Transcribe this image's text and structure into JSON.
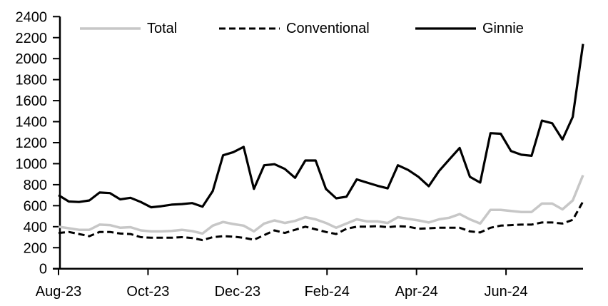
{
  "figure": {
    "background_color": "#ffffff",
    "axis_color": "#000000",
    "text_color": "#000000"
  },
  "chart_data": {
    "type": "line",
    "title": "",
    "xlabel": "",
    "ylabel": "",
    "x_frequency": "weekly",
    "x_tick_labels": [
      "Aug-23",
      "Oct-23",
      "Dec-23",
      "Feb-24",
      "Apr-24",
      "Jun-24"
    ],
    "y_ticks": [
      0,
      200,
      400,
      600,
      800,
      1000,
      1200,
      1400,
      1600,
      1800,
      2000,
      2200,
      2400
    ],
    "ylim": [
      0,
      2400
    ],
    "grid": "off",
    "legend_position": "top",
    "series": [
      {
        "name": "Total",
        "color": "#c7c7c7",
        "style": "solid",
        "width": 3.5,
        "values": [
          400,
          385,
          370,
          370,
          420,
          415,
          390,
          395,
          365,
          355,
          355,
          360,
          370,
          358,
          335,
          410,
          445,
          425,
          410,
          355,
          430,
          460,
          435,
          455,
          490,
          470,
          435,
          390,
          430,
          470,
          450,
          450,
          435,
          490,
          475,
          460,
          440,
          470,
          485,
          520,
          470,
          430,
          560,
          560,
          550,
          540,
          540,
          620,
          620,
          565,
          650,
          890
        ]
      },
      {
        "name": "Conventional",
        "color": "#000000",
        "style": "dashed",
        "width": 3,
        "values": [
          340,
          350,
          330,
          310,
          350,
          350,
          335,
          330,
          300,
          295,
          295,
          295,
          300,
          292,
          272,
          300,
          310,
          305,
          295,
          275,
          320,
          365,
          340,
          370,
          400,
          375,
          350,
          330,
          380,
          400,
          400,
          405,
          395,
          405,
          400,
          380,
          385,
          390,
          390,
          390,
          355,
          345,
          390,
          410,
          415,
          420,
          420,
          440,
          440,
          430,
          465,
          640
        ]
      },
      {
        "name": "Ginnie",
        "color": "#000000",
        "style": "solid",
        "width": 3.2,
        "values": [
          700,
          640,
          635,
          650,
          725,
          720,
          660,
          675,
          635,
          585,
          595,
          610,
          615,
          625,
          590,
          740,
          1080,
          1110,
          1160,
          760,
          985,
          995,
          950,
          865,
          1030,
          1030,
          760,
          670,
          685,
          850,
          820,
          790,
          765,
          985,
          940,
          875,
          785,
          930,
          1040,
          1150,
          875,
          820,
          1290,
          1285,
          1120,
          1085,
          1075,
          1410,
          1385,
          1230,
          1445,
          2140
        ]
      }
    ]
  }
}
